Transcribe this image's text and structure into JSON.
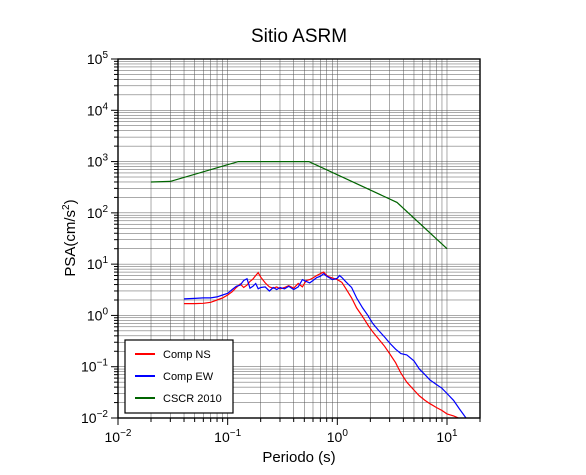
{
  "chart_data": {
    "type": "line",
    "title": "Sitio ASRM",
    "xlabel": "Periodo (s)",
    "ylabel_base": "PSA(cm/s",
    "ylabel_sup": "2",
    "ylabel_end": ")",
    "x_scale": "log",
    "y_scale": "log",
    "xlim": [
      0.01,
      20
    ],
    "ylim": [
      0.01,
      100000
    ],
    "grid": true,
    "legend_position": "bottom-left",
    "x_ticks": [
      {
        "value": 0.01,
        "base": "10",
        "exp": "−2"
      },
      {
        "value": 0.1,
        "base": "10",
        "exp": "−1"
      },
      {
        "value": 1,
        "base": "10",
        "exp": "0"
      },
      {
        "value": 10,
        "base": "10",
        "exp": "1"
      }
    ],
    "y_ticks": [
      {
        "value": 0.01,
        "base": "10",
        "exp": "−2"
      },
      {
        "value": 0.1,
        "base": "10",
        "exp": "−1"
      },
      {
        "value": 1,
        "base": "10",
        "exp": "0"
      },
      {
        "value": 10,
        "base": "10",
        "exp": "1"
      },
      {
        "value": 100,
        "base": "10",
        "exp": "2"
      },
      {
        "value": 1000,
        "base": "10",
        "exp": "3"
      },
      {
        "value": 10000,
        "base": "10",
        "exp": "4"
      },
      {
        "value": 100000,
        "base": "10",
        "exp": "5"
      }
    ],
    "series": [
      {
        "name": "Comp NS",
        "color": "#ff0000",
        "points": [
          [
            0.04,
            1.7
          ],
          [
            0.05,
            1.7
          ],
          [
            0.06,
            1.72
          ],
          [
            0.07,
            1.8
          ],
          [
            0.08,
            2.0
          ],
          [
            0.09,
            2.2
          ],
          [
            0.1,
            2.5
          ],
          [
            0.11,
            2.9
          ],
          [
            0.12,
            3.5
          ],
          [
            0.13,
            4.1
          ],
          [
            0.14,
            3.5
          ],
          [
            0.15,
            3.9
          ],
          [
            0.16,
            4.6
          ],
          [
            0.17,
            5.1
          ],
          [
            0.18,
            6.0
          ],
          [
            0.19,
            6.8
          ],
          [
            0.2,
            5.6
          ],
          [
            0.22,
            4.3
          ],
          [
            0.24,
            3.6
          ],
          [
            0.26,
            3.4
          ],
          [
            0.28,
            3.6
          ],
          [
            0.3,
            3.3
          ],
          [
            0.33,
            3.5
          ],
          [
            0.36,
            3.8
          ],
          [
            0.4,
            3.4
          ],
          [
            0.44,
            4.2
          ],
          [
            0.48,
            3.6
          ],
          [
            0.52,
            4.8
          ],
          [
            0.56,
            5.0
          ],
          [
            0.6,
            5.4
          ],
          [
            0.65,
            6.0
          ],
          [
            0.7,
            6.5
          ],
          [
            0.75,
            7.0
          ],
          [
            0.8,
            6.0
          ],
          [
            0.85,
            5.6
          ],
          [
            0.9,
            5.4
          ],
          [
            1.0,
            5.0
          ],
          [
            1.1,
            4.4
          ],
          [
            1.2,
            3.3
          ],
          [
            1.35,
            2.2
          ],
          [
            1.5,
            1.4
          ],
          [
            1.7,
            0.95
          ],
          [
            1.9,
            0.65
          ],
          [
            2.1,
            0.48
          ],
          [
            2.4,
            0.34
          ],
          [
            2.7,
            0.25
          ],
          [
            3.0,
            0.18
          ],
          [
            3.4,
            0.12
          ],
          [
            3.8,
            0.075
          ],
          [
            4.3,
            0.05
          ],
          [
            5.0,
            0.035
          ],
          [
            5.6,
            0.027
          ],
          [
            6.3,
            0.022
          ],
          [
            7.0,
            0.019
          ],
          [
            8.0,
            0.016
          ],
          [
            9.0,
            0.014
          ],
          [
            10.0,
            0.012
          ],
          [
            11.5,
            0.011
          ],
          [
            13.0,
            0.0098
          ]
        ]
      },
      {
        "name": "Comp EW",
        "color": "#0000ff",
        "points": [
          [
            0.04,
            2.1
          ],
          [
            0.05,
            2.15
          ],
          [
            0.06,
            2.2
          ],
          [
            0.07,
            2.2
          ],
          [
            0.08,
            2.3
          ],
          [
            0.09,
            2.5
          ],
          [
            0.1,
            2.7
          ],
          [
            0.11,
            3.2
          ],
          [
            0.12,
            3.7
          ],
          [
            0.13,
            3.9
          ],
          [
            0.14,
            4.8
          ],
          [
            0.15,
            5.2
          ],
          [
            0.16,
            3.4
          ],
          [
            0.17,
            3.7
          ],
          [
            0.18,
            4.2
          ],
          [
            0.19,
            3.3
          ],
          [
            0.2,
            3.5
          ],
          [
            0.22,
            3.6
          ],
          [
            0.24,
            3.0
          ],
          [
            0.26,
            3.5
          ],
          [
            0.28,
            3.2
          ],
          [
            0.3,
            3.5
          ],
          [
            0.33,
            3.3
          ],
          [
            0.36,
            3.7
          ],
          [
            0.4,
            3.2
          ],
          [
            0.44,
            3.6
          ],
          [
            0.48,
            5.0
          ],
          [
            0.52,
            4.6
          ],
          [
            0.56,
            4.3
          ],
          [
            0.6,
            4.8
          ],
          [
            0.65,
            5.5
          ],
          [
            0.7,
            5.8
          ],
          [
            0.75,
            6.5
          ],
          [
            0.8,
            5.8
          ],
          [
            0.85,
            5.4
          ],
          [
            0.9,
            5.0
          ],
          [
            1.0,
            5.3
          ],
          [
            1.05,
            6.0
          ],
          [
            1.1,
            5.5
          ],
          [
            1.2,
            4.5
          ],
          [
            1.35,
            3.5
          ],
          [
            1.5,
            2.2
          ],
          [
            1.7,
            1.4
          ],
          [
            1.9,
            1.0
          ],
          [
            2.1,
            0.7
          ],
          [
            2.4,
            0.5
          ],
          [
            2.7,
            0.38
          ],
          [
            3.0,
            0.29
          ],
          [
            3.4,
            0.22
          ],
          [
            3.8,
            0.18
          ],
          [
            4.3,
            0.17
          ],
          [
            5.0,
            0.13
          ],
          [
            5.6,
            0.09
          ],
          [
            6.3,
            0.07
          ],
          [
            7.0,
            0.055
          ],
          [
            8.0,
            0.045
          ],
          [
            9.0,
            0.038
          ],
          [
            10.0,
            0.03
          ],
          [
            11.5,
            0.022
          ],
          [
            13.0,
            0.015
          ],
          [
            15.0,
            0.0098
          ]
        ]
      },
      {
        "name": "CSCR 2010",
        "color": "#006400",
        "points": [
          [
            0.02,
            400
          ],
          [
            0.03,
            410
          ],
          [
            0.125,
            1000
          ],
          [
            0.55,
            1000
          ],
          [
            3.5,
            160
          ],
          [
            10.0,
            20
          ]
        ]
      }
    ]
  }
}
